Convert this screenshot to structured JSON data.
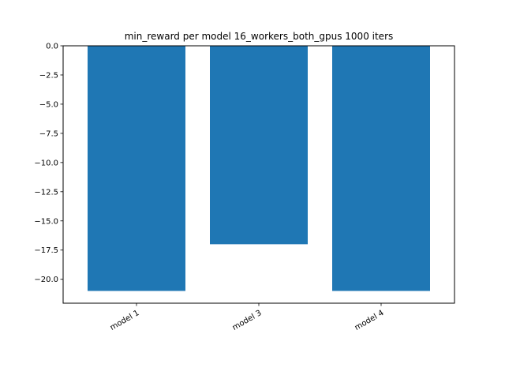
{
  "chart_data": {
    "type": "bar",
    "title": "min_reward per model 16_workers_both_gpus 1000 iters",
    "xlabel": "",
    "ylabel": "",
    "categories": [
      "model 1",
      "model 3",
      "model 4"
    ],
    "values": [
      -21.0,
      -17.0,
      -21.0
    ],
    "ylim": [
      -22.05,
      0.0
    ],
    "yticks": [
      0.0,
      -2.5,
      -5.0,
      -7.5,
      -10.0,
      -12.5,
      -15.0,
      -17.5,
      -20.0
    ],
    "ytick_labels": [
      "0.0",
      "−2.5",
      "−5.0",
      "−7.5",
      "−10.0",
      "−12.5",
      "−15.0",
      "−17.5",
      "−20.0"
    ],
    "bar_color": "#1f77b4",
    "grid": false,
    "legend": "none"
  }
}
